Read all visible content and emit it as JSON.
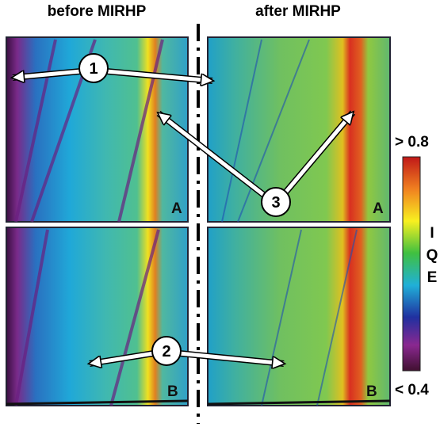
{
  "header": {
    "left": "before MIRHP",
    "right": "after MIRHP"
  },
  "callouts": [
    "1",
    "2",
    "3"
  ],
  "panel_labels": [
    "A",
    "A",
    "B",
    "B"
  ],
  "colorbar": {
    "max": "> 0.8",
    "min": "< 0.4",
    "label": [
      "I",
      "Q",
      "E"
    ]
  }
}
